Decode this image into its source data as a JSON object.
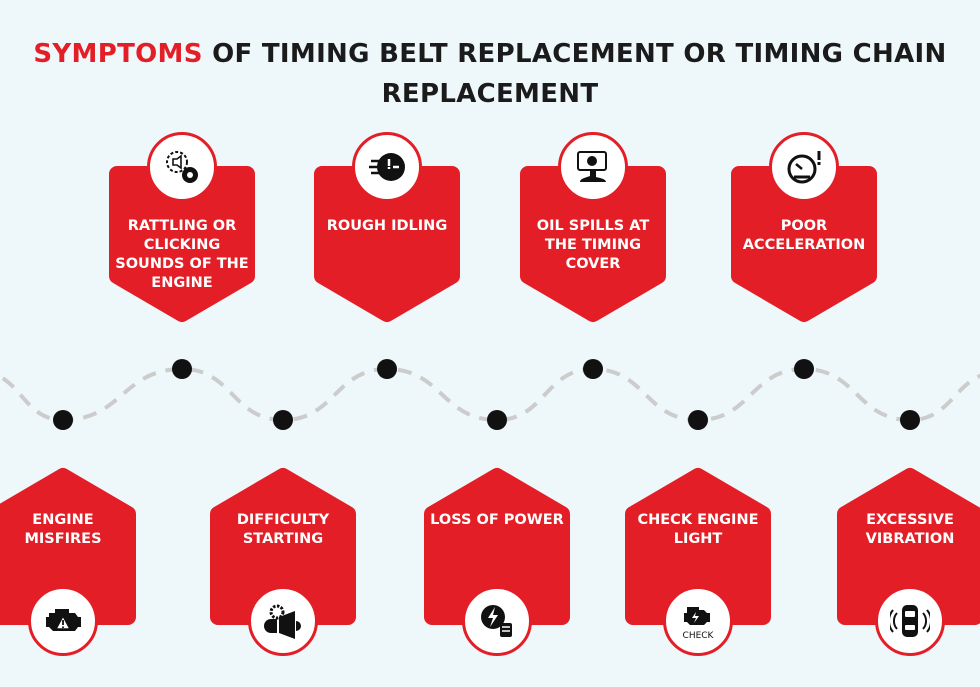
{
  "title": {
    "accent": "SYMPTOMS",
    "rest": " OF TIMING BELT REPLACEMENT OR TIMING CHAIN",
    "line2": "REPLACEMENT"
  },
  "colors": {
    "accent": "#e31e26",
    "background": "#eef7fa",
    "dot": "#111111",
    "wave": "#cccccc"
  },
  "top_items": [
    {
      "label": "RATTLING OR CLICKING SOUNDS OF THE ENGINE",
      "icon": "gear-sound-icon"
    },
    {
      "label": "ROUGH IDLING",
      "icon": "rough-idle-icon"
    },
    {
      "label": "OIL SPILLS AT THE TIMING COVER",
      "icon": "oil-spill-icon"
    },
    {
      "label": "POOR ACCELERATION",
      "icon": "speedometer-warning-icon"
    }
  ],
  "bottom_items": [
    {
      "label": "ENGINE MISFIRES",
      "icon": "engine-warning-icon"
    },
    {
      "label": "DIFFICULTY STARTING",
      "icon": "starter-gear-icon"
    },
    {
      "label": "LOSS OF POWER",
      "icon": "power-loss-icon"
    },
    {
      "label": "CHECK ENGINE LIGHT",
      "icon": "check-engine-icon",
      "icon_text": "CHECK"
    },
    {
      "label": "EXCESSIVE VIBRATION",
      "icon": "car-vibration-icon"
    }
  ]
}
